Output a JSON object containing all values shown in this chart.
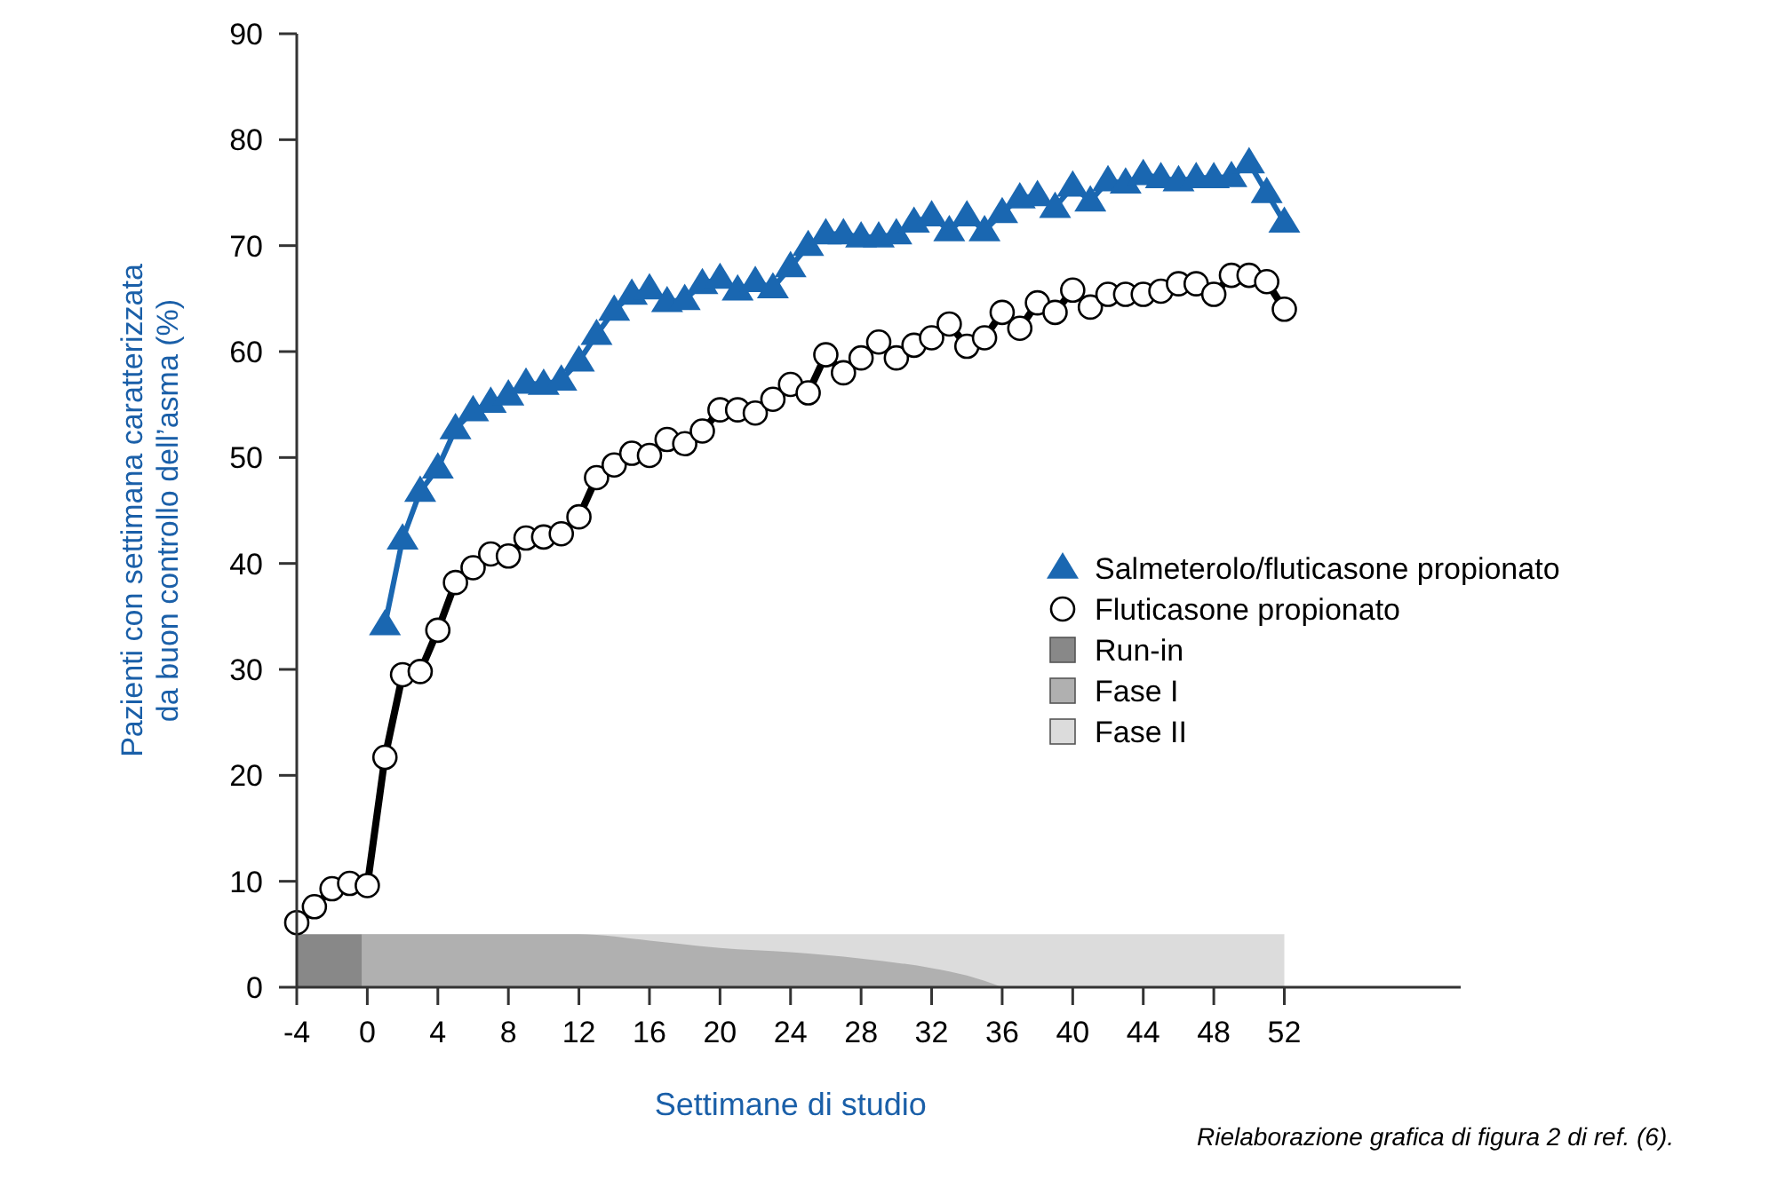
{
  "chart_data": {
    "type": "line",
    "xlabel": "Settimane di studio",
    "ylabel": "Pazienti con settimana caratterizzata\nda buon controllo dell’asma (%)",
    "xlim": [
      -4,
      62
    ],
    "xticks": [
      -4,
      0,
      4,
      8,
      12,
      16,
      20,
      24,
      28,
      32,
      36,
      40,
      44,
      48,
      52
    ],
    "ylim": [
      0,
      90
    ],
    "yticks": [
      0,
      10,
      20,
      30,
      40,
      50,
      60,
      70,
      80,
      90
    ],
    "grid": false,
    "legend": "right",
    "annotations": [
      "Rielaborazione grafica di figura 2 di ref. (6)."
    ],
    "series": [
      {
        "name": "Salmeterolo/fluticasone propionato",
        "marker": "triangle",
        "color": "#1a67b1",
        "x": [
          1,
          2,
          3,
          4,
          5,
          6,
          7,
          8,
          9,
          10,
          11,
          12,
          13,
          14,
          15,
          16,
          17,
          18,
          19,
          20,
          21,
          22,
          23,
          24,
          25,
          26,
          27,
          28,
          29,
          30,
          31,
          32,
          33,
          34,
          35,
          36,
          37,
          38,
          39,
          40,
          41,
          42,
          43,
          44,
          45,
          46,
          47,
          48,
          49,
          50,
          51,
          52
        ],
        "values": [
          34.2,
          42.3,
          46.8,
          49.0,
          52.7,
          54.4,
          55.2,
          55.9,
          57.0,
          56.9,
          57.3,
          59.1,
          61.6,
          63.9,
          65.4,
          65.9,
          64.7,
          64.9,
          66.4,
          66.9,
          65.8,
          66.6,
          66.0,
          68.0,
          70.0,
          71.1,
          71.1,
          70.8,
          70.8,
          71.1,
          72.2,
          72.8,
          71.4,
          72.8,
          71.4,
          73.1,
          74.5,
          74.7,
          73.6,
          75.6,
          74.2,
          76.1,
          75.9,
          76.7,
          76.4,
          76.1,
          76.4,
          76.4,
          76.5,
          77.8,
          75.0,
          72.2
        ]
      },
      {
        "name": "Fluticasone propionato",
        "marker": "circle",
        "color": "#000000",
        "x": [
          -4,
          -3,
          -2,
          -1,
          0,
          1,
          2,
          3,
          4,
          5,
          6,
          7,
          8,
          9,
          10,
          11,
          12,
          13,
          14,
          15,
          16,
          17,
          18,
          19,
          20,
          21,
          22,
          23,
          24,
          25,
          26,
          27,
          28,
          29,
          30,
          31,
          32,
          33,
          34,
          35,
          36,
          37,
          38,
          39,
          40,
          41,
          42,
          43,
          44,
          45,
          46,
          47,
          48,
          49,
          50,
          51,
          52
        ],
        "values": [
          6.1,
          7.6,
          9.3,
          9.8,
          9.6,
          21.7,
          29.5,
          29.8,
          33.7,
          38.2,
          39.6,
          40.9,
          40.7,
          42.4,
          42.5,
          42.8,
          44.4,
          48.1,
          49.3,
          50.4,
          50.2,
          51.7,
          51.3,
          52.5,
          54.5,
          54.5,
          54.2,
          55.5,
          56.9,
          56.1,
          59.7,
          58.0,
          59.4,
          60.9,
          59.4,
          60.6,
          61.3,
          62.6,
          60.5,
          61.3,
          63.7,
          62.2,
          64.6,
          63.7,
          65.8,
          64.2,
          65.4,
          65.4,
          65.4,
          65.7,
          66.4,
          66.4,
          65.4,
          67.2,
          67.2,
          66.6,
          64.0
        ]
      },
      {
        "name": "Run-in",
        "type": "area",
        "color": "#888888",
        "x": [
          -4,
          -0.3
        ],
        "values": [
          5,
          5
        ]
      },
      {
        "name": "Fase I",
        "type": "area",
        "color": "#b0b0b0",
        "x": [
          -0.3,
          12,
          16,
          20,
          24,
          28,
          32,
          34,
          36
        ],
        "values": [
          5,
          5,
          4.4,
          3.7,
          3.3,
          2.7,
          1.8,
          1.1,
          0
        ]
      },
      {
        "name": "Fase II",
        "type": "area",
        "color": "#dcdcdc",
        "x": [
          -0.3,
          52
        ],
        "values": [
          5,
          5
        ]
      }
    ]
  }
}
